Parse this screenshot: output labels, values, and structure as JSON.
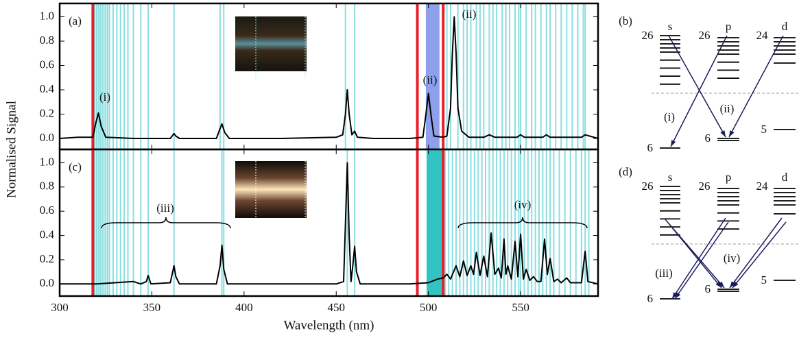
{
  "chart_data": [
    {
      "type": "line",
      "panel_label": "(a)",
      "ylabel": "Normalised Signal",
      "x": [
        300,
        310,
        318,
        319.5,
        321,
        322.5,
        325,
        340,
        360,
        361,
        362,
        363,
        365,
        385,
        386.5,
        388,
        389.5,
        392,
        420,
        450,
        453.5,
        455,
        456,
        457,
        458.5,
        460,
        461.5,
        470,
        490,
        497,
        498.5,
        500,
        501.5,
        503,
        508,
        510,
        512,
        513,
        514,
        515,
        516,
        518,
        522,
        530,
        533,
        536,
        548,
        550,
        552,
        562,
        564,
        566,
        583,
        585,
        592
      ],
      "values": [
        0,
        0.01,
        0.01,
        0.12,
        0.21,
        0.1,
        0.01,
        0,
        0,
        0.02,
        0.04,
        0.02,
        0,
        0,
        0.06,
        0.12,
        0.05,
        0,
        0,
        0.01,
        0.03,
        0.2,
        0.4,
        0.2,
        0.03,
        0.06,
        0.01,
        0,
        0,
        0.01,
        0.18,
        0.37,
        0.18,
        0.02,
        0.01,
        0.02,
        0.25,
        0.7,
        1.0,
        0.7,
        0.25,
        0.06,
        0.01,
        0.01,
        0.03,
        0.01,
        0.01,
        0.03,
        0.01,
        0.01,
        0.03,
        0.01,
        0.01,
        0.03,
        0
      ],
      "color": "#000000",
      "xlim": [
        300,
        592
      ],
      "ylim": [
        -0.09,
        1.11
      ],
      "yticks": [
        {
          "value": 0,
          "label": "0.0"
        },
        0.2,
        0.4,
        0.6,
        0.8,
        {
          "value": 1,
          "label": "1.0"
        }
      ],
      "red_lines": [
        318,
        494,
        508
      ],
      "red_color": "#e8202a",
      "band": [
        498.6,
        506
      ],
      "band_color": "#7a8ee8",
      "cyan_lines": [
        319,
        320,
        321,
        322,
        323,
        324,
        325,
        326,
        327,
        329,
        331,
        333,
        335,
        337,
        340,
        344,
        348,
        362,
        387,
        389,
        455,
        460,
        510,
        512,
        516,
        519,
        521,
        523,
        526,
        528,
        530,
        533,
        535,
        537,
        540,
        542,
        544,
        547,
        549,
        550,
        553,
        556,
        558,
        561,
        564,
        566,
        569,
        572,
        575,
        578,
        581,
        584,
        585
      ],
      "cyan_color": "#2cc4c8",
      "annotations": [
        "(i)",
        "(ii)",
        "(ii)"
      ]
    },
    {
      "type": "line",
      "panel_label": "(c)",
      "xlabel": "Wavelength (nm)",
      "x": [
        300,
        320,
        340,
        344,
        347,
        348,
        349.5,
        360,
        361,
        362,
        363,
        365,
        385,
        387,
        388,
        389,
        391,
        450,
        454,
        455,
        456,
        457,
        458,
        459,
        460,
        461,
        463,
        490,
        500,
        505,
        508,
        510,
        512,
        515,
        517,
        519,
        521,
        523,
        524.5,
        526,
        528,
        530,
        532,
        534,
        536,
        538,
        539.5,
        541,
        542,
        543,
        545,
        547,
        548.5,
        550,
        551.5,
        553,
        555,
        557,
        559,
        561,
        563,
        564.5,
        566,
        568,
        570,
        572,
        575,
        577,
        583,
        585,
        586.5,
        592
      ],
      "values": [
        0,
        0,
        0.02,
        0,
        0.02,
        0.07,
        0,
        0.01,
        0.08,
        0.15,
        0.06,
        0,
        0,
        0.15,
        0.32,
        0.12,
        0,
        0,
        0.02,
        0.5,
        1.0,
        0.4,
        0.02,
        0.15,
        0.31,
        0.1,
        0,
        0,
        0.01,
        0.04,
        0.05,
        0.08,
        0.04,
        0.15,
        0.06,
        0.19,
        0.07,
        0.15,
        0.08,
        0.26,
        0.07,
        0.23,
        0.06,
        0.42,
        0.08,
        0.13,
        0.05,
        0.37,
        0.08,
        0.15,
        0.04,
        0.35,
        0.06,
        0.41,
        0.04,
        0.12,
        0.03,
        0.06,
        0.02,
        0.02,
        0.37,
        0.08,
        0.21,
        0.02,
        0.04,
        0.01,
        0.05,
        0.01,
        0.01,
        0.27,
        0.02,
        0
      ],
      "color": "#000000",
      "xlim": [
        300,
        592
      ],
      "ylim": [
        -0.1,
        1.11
      ],
      "xticks": [
        300,
        350,
        400,
        450,
        500,
        550
      ],
      "yticks": [
        {
          "value": 0,
          "label": "0.0"
        },
        0.2,
        0.4,
        0.6,
        0.8,
        {
          "value": 1,
          "label": "1.0"
        }
      ],
      "red_lines": [
        318,
        494,
        508
      ],
      "red_color": "#e8202a",
      "band": [
        499,
        508
      ],
      "band_color": "#11b8b8",
      "cyan_lines": [
        319,
        320,
        321,
        322,
        323,
        324,
        325,
        326,
        327,
        329,
        331,
        333,
        335,
        337,
        340,
        344,
        348,
        362,
        388,
        389,
        456,
        460,
        509,
        511,
        513,
        515,
        517,
        519,
        521,
        523,
        525,
        527,
        529,
        531,
        533,
        535,
        537,
        539,
        541,
        543,
        545,
        547,
        549,
        550,
        552,
        554,
        556,
        558,
        560,
        562,
        564,
        566,
        568,
        571,
        574,
        577,
        580,
        583,
        585,
        587
      ],
      "cyan_color": "#2cc4c8",
      "annotations": [
        "(iii)",
        "(iv)"
      ]
    }
  ],
  "diagrams": [
    {
      "label": "(b)",
      "columns": [
        {
          "name": "s",
          "top": "26",
          "bottom": "6"
        },
        {
          "name": "p",
          "top": "26",
          "bottom": "6"
        },
        {
          "name": "d",
          "top": "24",
          "bottom": "5"
        }
      ],
      "arrow_labels": [
        "(i)",
        "(ii)"
      ]
    },
    {
      "label": "(d)",
      "columns": [
        {
          "name": "s",
          "top": "26",
          "bottom": "6"
        },
        {
          "name": "p",
          "top": "26",
          "bottom": "6"
        },
        {
          "name": "d",
          "top": "24",
          "bottom": "5"
        }
      ],
      "arrow_labels": [
        "(iii)",
        "(iv)"
      ]
    }
  ]
}
